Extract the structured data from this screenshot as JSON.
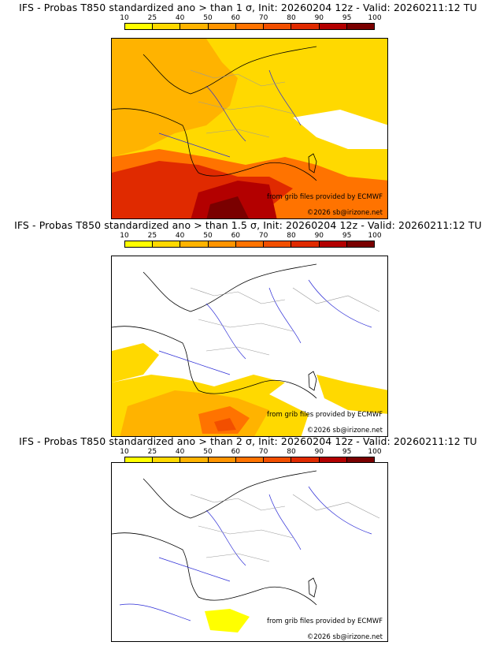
{
  "legend": {
    "ticks": [
      "10",
      "25",
      "40",
      "50",
      "60",
      "70",
      "80",
      "90",
      "95",
      "100"
    ],
    "colors": [
      "#ffff00",
      "#ffd900",
      "#ffb300",
      "#ff9400",
      "#ff7300",
      "#f24f00",
      "#e02a00",
      "#b30000",
      "#7a0000"
    ]
  },
  "panels": [
    {
      "title": "IFS - Probas T850  standardized ano > than 1 σ, Init: 20260204 12z - Valid: 20260211:12 TU",
      "credit_source": "from grib files provided by ECMWF",
      "credit_copyright": "©2026 sb@irizone.net"
    },
    {
      "title": "IFS - Probas T850  standardized ano > than 1.5 σ, Init: 20260204 12z - Valid: 20260211:12 TU",
      "credit_source": "from grib files provided by ECMWF",
      "credit_copyright": "©2026 sb@irizone.net"
    },
    {
      "title": "IFS - Probas T850  standardized ano > than 2 σ, Init: 20260204 12z - Valid: 20260211:12 TU",
      "credit_source": "from grib files provided by ECMWF",
      "credit_copyright": "©2026 sb@irizone.net"
    }
  ],
  "colors": {
    "coast": "#000000",
    "rivers": "#2b2bd6",
    "borders": "#9a9a9a"
  }
}
